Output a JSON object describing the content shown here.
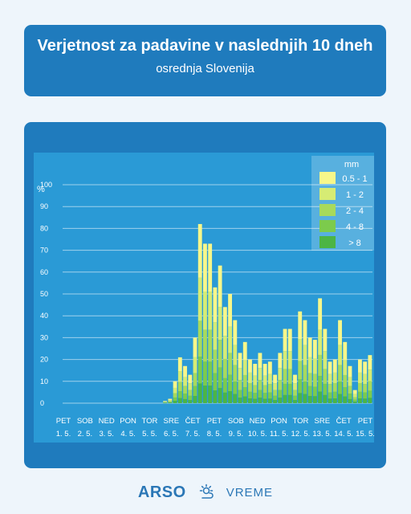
{
  "header": {
    "title": "Verjetnost za padavine v naslednjih 10 dneh",
    "subtitle": "osrednja Slovenija"
  },
  "footer": {
    "brand": "ARSO",
    "sub": "VREME",
    "icon": "sun-cloud-icon"
  },
  "colors": {
    "panel": "#1f7bbd",
    "plot_bg": "#2a9ad6",
    "c1": "#f7f78a",
    "c2": "#d6ec74",
    "c3": "#a8da5c",
    "c4": "#7ccb4c",
    "c5": "#4cb544"
  },
  "chart_data": {
    "type": "bar",
    "stacked": true,
    "ylabel": "%",
    "ylim": [
      0,
      100
    ],
    "yticks": [
      0,
      10,
      20,
      30,
      40,
      50,
      60,
      70,
      80,
      90,
      100
    ],
    "grid": true,
    "legend": {
      "title": "mm",
      "placement": "top-right"
    },
    "day_labels": [
      {
        "day": "PET",
        "date": "1. 5."
      },
      {
        "day": "SOB",
        "date": "2. 5."
      },
      {
        "day": "NED",
        "date": "3. 5."
      },
      {
        "day": "PON",
        "date": "4. 5."
      },
      {
        "day": "TOR",
        "date": "5. 5."
      },
      {
        "day": "SRE",
        "date": "6. 5."
      },
      {
        "day": "ČET",
        "date": "7. 5."
      },
      {
        "day": "PET",
        "date": "8. 5."
      },
      {
        "day": "SOB",
        "date": "9. 5."
      },
      {
        "day": "NED",
        "date": "10. 5."
      },
      {
        "day": "PON",
        "date": "11. 5."
      },
      {
        "day": "TOR",
        "date": "12. 5."
      },
      {
        "day": "SRE",
        "date": "13. 5."
      },
      {
        "day": "ČET",
        "date": "14. 5."
      },
      {
        "day": "PET",
        "date": "15. 5."
      }
    ],
    "series": [
      {
        "name": "0.5 - 1",
        "color": "#f7f78a"
      },
      {
        "name": "1 - 2",
        "color": "#d6ec74"
      },
      {
        "name": "2 - 4",
        "color": "#a8da5c"
      },
      {
        "name": "4 - 8",
        "color": "#7ccb4c"
      },
      {
        "name": "> 8",
        "color": "#4cb544"
      }
    ],
    "totals": [
      0,
      0,
      0,
      0,
      0,
      0,
      0,
      0,
      0,
      0,
      0,
      0,
      0,
      0,
      0,
      0,
      0,
      0,
      0,
      0,
      1,
      2,
      10,
      21,
      17,
      13,
      30,
      82,
      73,
      73,
      53,
      63,
      44,
      50,
      38,
      23,
      28,
      20,
      18,
      23,
      18,
      19,
      13,
      23,
      34,
      34,
      13,
      42,
      38,
      30,
      29,
      48,
      34,
      19,
      20,
      38,
      28,
      17,
      6,
      20,
      19,
      22
    ]
  }
}
